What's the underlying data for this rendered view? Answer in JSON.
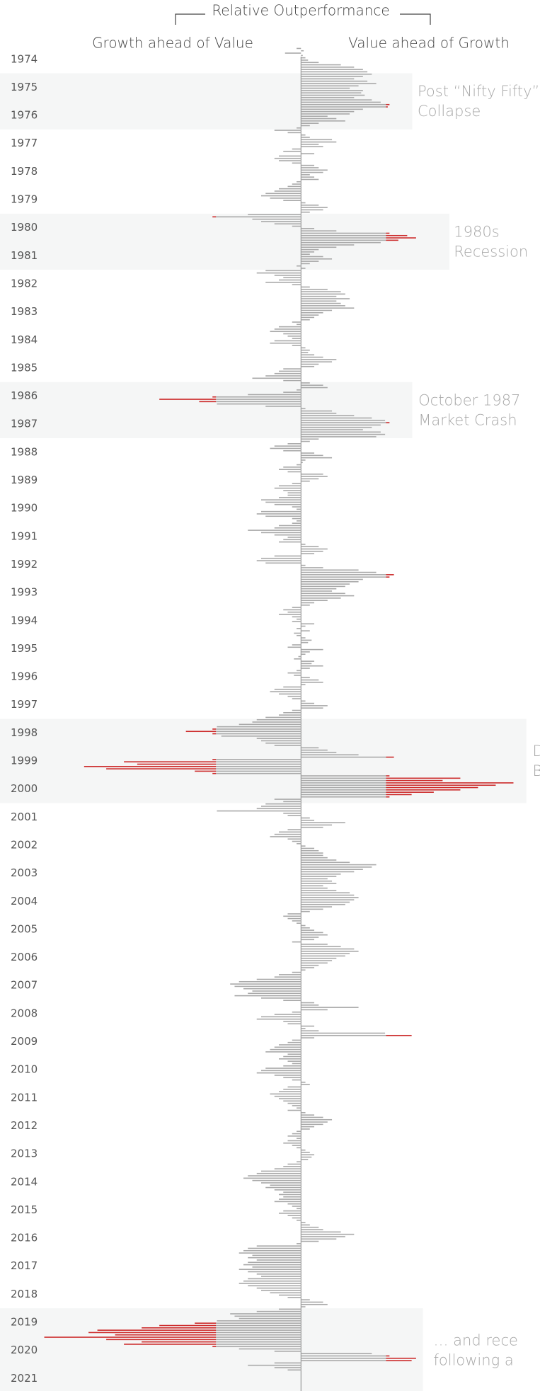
{
  "chart_data": {
    "type": "diverging-bar",
    "title": "Relative Outperformance",
    "left_label": "Growth ahead of Value",
    "right_label": "Value ahead of Growth",
    "color": "#a9a9a9",
    "highlight_color": "#cc2a2a",
    "highlight_above": 96,
    "band_color": "#f5f6f6",
    "xlim": [
      -340,
      270
    ],
    "categories": [
      "1974",
      "1975",
      "1976",
      "1977",
      "1978",
      "1979",
      "1980",
      "1981",
      "1982",
      "1983",
      "1984",
      "1985",
      "1986",
      "1987",
      "1988",
      "1989",
      "1990",
      "1991",
      "1992",
      "1993",
      "1994",
      "1995",
      "1996",
      "1997",
      "1998",
      "1999",
      "2000",
      "2001",
      "2002",
      "2003",
      "2004",
      "2005",
      "2006",
      "2007",
      "2008",
      "2009",
      "2010",
      "2011",
      "2012",
      "2013",
      "2014",
      "2015",
      "2016",
      "2017",
      "2018",
      "2019",
      "2020",
      "2021"
    ],
    "values": [
      [
        0,
        -5,
        3,
        -18,
        2,
        5,
        8,
        20,
        45,
        60,
        70,
        75
      ],
      [
        80,
        70,
        60,
        75,
        85,
        65,
        55,
        70,
        68,
        72,
        60,
        80
      ],
      [
        90,
        100,
        98,
        70,
        60,
        55,
        30,
        40,
        50,
        20,
        10,
        -5
      ],
      [
        -30,
        -15,
        5,
        10,
        35,
        40,
        20,
        25,
        -10,
        -20,
        15,
        -25
      ],
      [
        -30,
        -25,
        -10,
        15,
        20,
        30,
        25,
        10,
        15,
        20,
        -5,
        -10
      ],
      [
        -15,
        -25,
        -30,
        -40,
        -45,
        -35,
        -20,
        5,
        20,
        30,
        25,
        10
      ],
      [
        -60,
        -100,
        -55,
        -45,
        -30,
        -10,
        15,
        40,
        100,
        120,
        130,
        110
      ],
      [
        90,
        60,
        40,
        20,
        15,
        10,
        25,
        35,
        20,
        10,
        -5,
        5
      ],
      [
        -40,
        -50,
        -30,
        -20,
        -25,
        -40,
        -10,
        10,
        30,
        45,
        50,
        40
      ],
      [
        55,
        40,
        45,
        50,
        60,
        35,
        25,
        20,
        15,
        10,
        -10,
        -5
      ],
      [
        -25,
        -30,
        -35,
        -20,
        -15,
        -10,
        -30,
        -35,
        -10,
        5,
        10,
        8
      ],
      [
        15,
        25,
        40,
        35,
        20,
        15,
        -20,
        -25,
        -30,
        -40,
        -55,
        -20
      ],
      [
        10,
        25,
        30,
        -5,
        -20,
        -60,
        -100,
        -160,
        -115,
        -95,
        -40,
        5
      ],
      [
        35,
        40,
        60,
        80,
        95,
        100,
        90,
        80,
        70,
        90,
        95,
        85
      ],
      [
        20,
        10,
        -15,
        -30,
        -35,
        -20,
        15,
        25,
        35,
        5,
        2,
        -5
      ],
      [
        -20,
        -25,
        -15,
        25,
        30,
        20,
        10,
        -10,
        -25,
        -30,
        -20,
        -15
      ],
      [
        -15,
        -25,
        -45,
        -40,
        -30,
        -10,
        -5,
        -45,
        -50,
        -40,
        -10,
        -5
      ],
      [
        -10,
        -25,
        -30,
        -60,
        -45,
        -30,
        -15,
        -20,
        -25,
        5,
        20,
        30
      ],
      [
        25,
        15,
        -30,
        -45,
        -50,
        -40,
        5,
        25,
        65,
        85,
        105,
        100
      ],
      [
        70,
        65,
        55,
        50,
        40,
        35,
        50,
        60,
        45,
        30,
        15,
        10
      ],
      [
        -10,
        -20,
        -15,
        -25,
        -10,
        -5,
        -10,
        15,
        5,
        -5,
        10,
        -8
      ],
      [
        -5,
        5,
        12,
        8,
        -10,
        -15,
        25,
        10,
        5,
        -3,
        -8,
        15
      ],
      [
        12,
        25,
        10,
        -5,
        -15,
        -8,
        10,
        20,
        25,
        5,
        -20,
        -30
      ],
      [
        -35,
        -25,
        -15,
        -10,
        5,
        15,
        30,
        25,
        -10,
        -20,
        -25,
        -40
      ],
      [
        -50,
        -55,
        -70,
        -95,
        -100,
        -130,
        -100,
        -90,
        -50,
        -45,
        -40,
        -30
      ],
      [
        20,
        30,
        40,
        65,
        105,
        -100,
        -200,
        -185,
        -245,
        -220,
        -120,
        -100
      ],
      [
        100,
        180,
        160,
        240,
        220,
        200,
        180,
        150,
        125,
        100,
        -30,
        -20
      ],
      [
        -40,
        -45,
        -50,
        -95,
        -20,
        -15,
        10,
        15,
        50,
        35,
        25,
        -15
      ],
      [
        -25,
        -30,
        -35,
        -15,
        -10,
        -5,
        5,
        15,
        20,
        25,
        25,
        30
      ],
      [
        40,
        55,
        85,
        80,
        70,
        60,
        45,
        40,
        30,
        35,
        40,
        25
      ],
      [
        30,
        40,
        55,
        60,
        65,
        60,
        55,
        50,
        35,
        25,
        10,
        -15
      ],
      [
        -20,
        -15,
        -10,
        -5,
        5,
        10,
        15,
        25,
        30,
        20,
        15,
        -10
      ],
      [
        30,
        45,
        60,
        65,
        55,
        50,
        40,
        35,
        30,
        20,
        15,
        5
      ],
      [
        -10,
        -25,
        -30,
        -50,
        -70,
        -80,
        -75,
        -65,
        -55,
        -60,
        -75,
        -45
      ],
      [
        -20,
        15,
        20,
        65,
        30,
        -10,
        -30,
        -45,
        -50,
        -20,
        -15,
        15
      ],
      [
        5,
        20,
        95,
        125,
        15,
        -10,
        -15,
        -25,
        -30,
        -35,
        -40,
        -15
      ],
      [
        -20,
        -25,
        -15,
        -10,
        -20,
        -40,
        -45,
        -50,
        -30,
        -20,
        -10,
        5
      ],
      [
        10,
        -15,
        -20,
        -25,
        -35,
        -30,
        -25,
        -20,
        -15,
        -10,
        -5,
        -15
      ],
      [
        5,
        15,
        25,
        35,
        30,
        25,
        15,
        10,
        -5,
        -10,
        -15,
        -5
      ],
      [
        -15,
        -20,
        -10,
        -5,
        5,
        10,
        15,
        12,
        8,
        -5,
        -15,
        -20
      ],
      [
        -30,
        -45,
        -50,
        -60,
        -65,
        -55,
        -45,
        -35,
        -40,
        -30,
        -20,
        -25
      ],
      [
        -20,
        -25,
        -30,
        -15,
        -10,
        -5,
        -20,
        -25,
        -15,
        -10,
        -5,
        5
      ],
      [
        10,
        20,
        25,
        45,
        60,
        50,
        40,
        20,
        -5,
        -50,
        -60,
        -65
      ],
      [
        -70,
        -55,
        -60,
        -50,
        -60,
        -65,
        -55,
        -70,
        -60,
        -50,
        -45,
        -60
      ],
      [
        -65,
        -70,
        -60,
        -50,
        -45,
        -35,
        -25,
        -15,
        10,
        25,
        30,
        5
      ],
      [
        -25,
        -50,
        -80,
        -75,
        -70,
        -95,
        -120,
        -160,
        -180,
        -230,
        -240,
        -210
      ],
      [
        -290,
        -220,
        -180,
        -200,
        -100,
        -70,
        -30,
        80,
        100,
        130,
        125,
        -30
      ],
      [
        -60,
        -30,
        -15
      ]
    ],
    "bands": [
      {
        "from": "1975",
        "to": "1976",
        "label": [
          "Post “Nifty Fifty”",
          "Collapse"
        ]
      },
      {
        "from": "1980",
        "to": "1981",
        "label": [
          "1980s",
          "Recession"
        ]
      },
      {
        "from": "1986",
        "to": "1987",
        "label": [
          "October 1987",
          "Market Crash"
        ]
      },
      {
        "from": "1998",
        "to": "2000",
        "label": [
          "D",
          "B"
        ]
      },
      {
        "from": "2019",
        "to": "2021",
        "label": [
          "… and rece",
          "following a"
        ]
      }
    ]
  }
}
